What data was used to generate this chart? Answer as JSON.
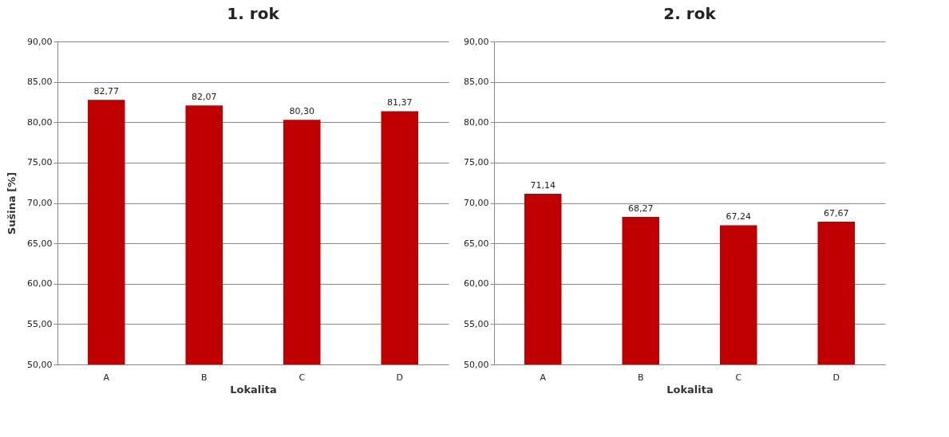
{
  "chart_data": [
    {
      "type": "bar",
      "title": "1. rok",
      "xlabel": "Lokalita",
      "ylabel": "Sušina [%]",
      "categories": [
        "A",
        "B",
        "C",
        "D"
      ],
      "values": [
        82.77,
        82.07,
        80.3,
        81.37
      ],
      "value_labels": [
        "82,77",
        "82,07",
        "80,30",
        "81,37"
      ],
      "color": "#c00000",
      "ylim": [
        50,
        90
      ],
      "yticks": [
        {
          "value": 50,
          "label": "50,00"
        },
        {
          "value": 55,
          "label": "55,00"
        },
        {
          "value": 60,
          "label": "60,00"
        },
        {
          "value": 65,
          "label": "65,00"
        },
        {
          "value": 70,
          "label": "70,00"
        },
        {
          "value": 75,
          "label": "75,00"
        },
        {
          "value": 80,
          "label": "80,00"
        },
        {
          "value": 85,
          "label": "85,00"
        },
        {
          "value": 90,
          "label": "90,00"
        }
      ],
      "grid": "y",
      "legend": false
    },
    {
      "type": "bar",
      "title": "2. rok",
      "xlabel": "Lokalita",
      "categories": [
        "A",
        "B",
        "C",
        "D"
      ],
      "values": [
        71.14,
        68.27,
        67.24,
        67.67
      ],
      "value_labels": [
        "71,14",
        "68,27",
        "67,24",
        "67,67"
      ],
      "color": "#c00000",
      "ylim": [
        50,
        90
      ],
      "yticks": [
        {
          "value": 50,
          "label": "50,00"
        },
        {
          "value": 55,
          "label": "55,00"
        },
        {
          "value": 60,
          "label": "60,00"
        },
        {
          "value": 65,
          "label": "65,00"
        },
        {
          "value": 70,
          "label": "70,00"
        },
        {
          "value": 75,
          "label": "75,00"
        },
        {
          "value": 80,
          "label": "80,00"
        },
        {
          "value": 85,
          "label": "85,00"
        },
        {
          "value": 90,
          "label": "90,00"
        }
      ],
      "grid": "y",
      "legend": false
    }
  ]
}
